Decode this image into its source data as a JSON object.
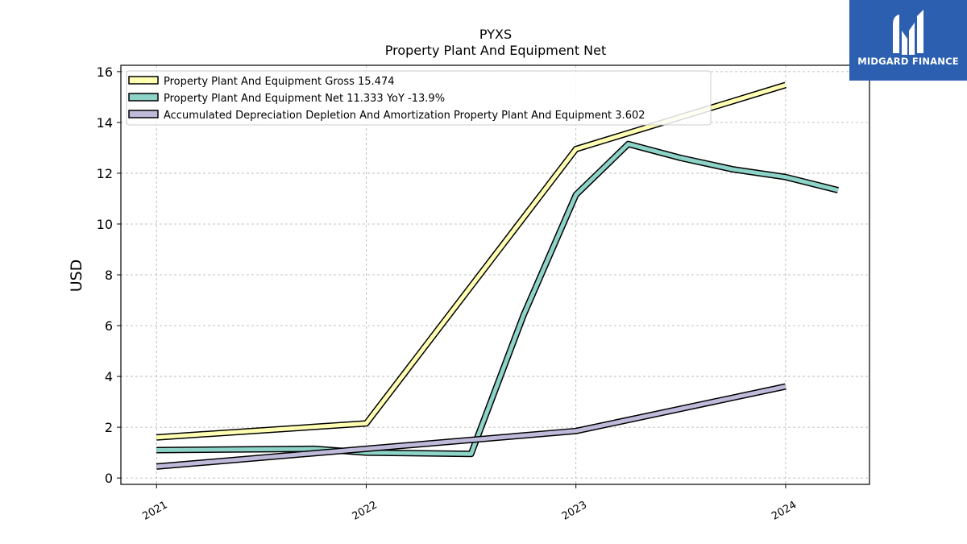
{
  "brand": {
    "name": "MIDGARD FINANCE",
    "bg_color": "#2c5fb0"
  },
  "chart_data": {
    "type": "line",
    "title": "PYXS",
    "subtitle": "Property Plant And Equipment Net",
    "xlabel": "",
    "ylabel": "USD",
    "xlim": [
      2020.83,
      2024.4
    ],
    "ylim": [
      -0.25,
      16.25
    ],
    "x_ticks": [
      {
        "value": 2021,
        "label": "2021"
      },
      {
        "value": 2022,
        "label": "2022"
      },
      {
        "value": 2023,
        "label": "2023"
      },
      {
        "value": 2024,
        "label": "2024"
      }
    ],
    "y_ticks": [
      0,
      2,
      4,
      6,
      8,
      10,
      12,
      14,
      16
    ],
    "grid": true,
    "legend_position": "top-left",
    "series": [
      {
        "name": "Property Plant And Equipment Gross  15.474",
        "color": "#ffffb3",
        "points": [
          {
            "x": 2021.0,
            "y": 1.6
          },
          {
            "x": 2022.0,
            "y": 2.15
          },
          {
            "x": 2023.0,
            "y": 12.95
          },
          {
            "x": 2024.0,
            "y": 15.474
          }
        ]
      },
      {
        "name": "Property Plant And Equipment Net  11.333 YoY -13.9%",
        "color": "#8dd3c7",
        "points": [
          {
            "x": 2021.0,
            "y": 1.1
          },
          {
            "x": 2021.75,
            "y": 1.15
          },
          {
            "x": 2022.0,
            "y": 1.0
          },
          {
            "x": 2022.5,
            "y": 0.95
          },
          {
            "x": 2022.75,
            "y": 6.4
          },
          {
            "x": 2023.0,
            "y": 11.15
          },
          {
            "x": 2023.25,
            "y": 13.15
          },
          {
            "x": 2023.5,
            "y": 12.6
          },
          {
            "x": 2023.75,
            "y": 12.15
          },
          {
            "x": 2024.0,
            "y": 11.85
          },
          {
            "x": 2024.25,
            "y": 11.333
          }
        ]
      },
      {
        "name": "Accumulated Depreciation Depletion And Amortization Property Plant And Equipment  3.602",
        "color": "#bebada",
        "points": [
          {
            "x": 2021.0,
            "y": 0.45
          },
          {
            "x": 2022.0,
            "y": 1.15
          },
          {
            "x": 2023.0,
            "y": 1.85
          },
          {
            "x": 2024.0,
            "y": 3.602
          }
        ]
      }
    ]
  }
}
